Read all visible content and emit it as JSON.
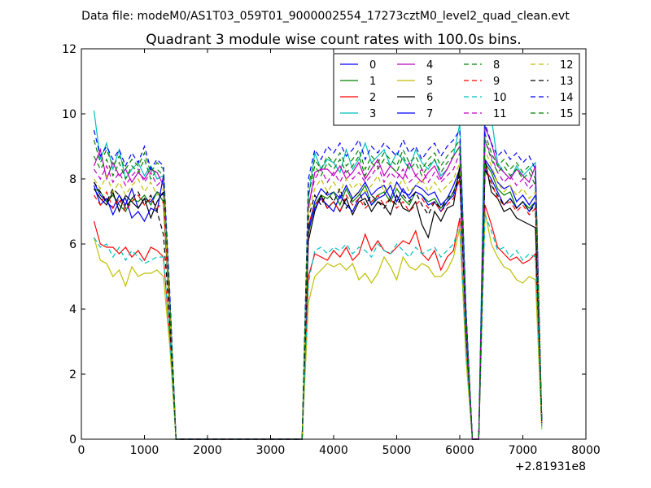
{
  "chart_data": {
    "type": "line",
    "suptitle": "Data file: modeM0/AS1T03_059T01_9000002554_17273cztM0_level2_quad_clean.evt",
    "title": "Quadrant 3 module wise count rates with 100.0s bins.",
    "xlabel": "",
    "ylabel": "",
    "xlim": [
      0,
      8000
    ],
    "ylim": [
      0,
      12
    ],
    "x_offset_label": "+2.81931e8",
    "xticks": [
      0,
      1000,
      2000,
      3000,
      4000,
      5000,
      6000,
      7000,
      8000
    ],
    "yticks": [
      0,
      2,
      4,
      6,
      8,
      10,
      12
    ],
    "legend_position": "top-right",
    "x": [
      200,
      300,
      400,
      500,
      600,
      700,
      800,
      900,
      1000,
      1100,
      1200,
      1300,
      1400,
      1500,
      1600,
      1700,
      1800,
      1900,
      2000,
      2100,
      2200,
      2300,
      2400,
      2500,
      2600,
      2700,
      2800,
      2900,
      3000,
      3100,
      3200,
      3300,
      3400,
      3500,
      3600,
      3700,
      3800,
      3900,
      4000,
      4100,
      4200,
      4300,
      4400,
      4500,
      4600,
      4700,
      4800,
      4900,
      5000,
      5100,
      5200,
      5300,
      5400,
      5500,
      5600,
      5700,
      5800,
      5900,
      6000,
      6100,
      6200,
      6300,
      6400,
      6500,
      6600,
      6700,
      6800,
      6900,
      7000,
      7100,
      7200,
      7300
    ],
    "series": [
      {
        "name": "0",
        "color": "#0000ff",
        "dash": "solid",
        "values": [
          7.9,
          7.5,
          7.3,
          7.1,
          7.5,
          7.2,
          7.7,
          7.1,
          7.4,
          7.3,
          7.6,
          7.5,
          4.0,
          0,
          0,
          0,
          0,
          0,
          0,
          0,
          0,
          0,
          0,
          0,
          0,
          0,
          0,
          0,
          0,
          0,
          0,
          0,
          0,
          0,
          6.5,
          7.3,
          7.7,
          7.5,
          7.6,
          7.4,
          7.8,
          7.4,
          7.6,
          7.9,
          7.5,
          7.7,
          7.8,
          7.4,
          7.9,
          7.6,
          7.5,
          7.8,
          7.7,
          7.5,
          7.6,
          7.2,
          7.4,
          7.8,
          8.3,
          3.5,
          0,
          0,
          8.6,
          8.3,
          7.9,
          7.7,
          7.8,
          7.3,
          7.5,
          7.2,
          7.5,
          0.5
        ]
      },
      {
        "name": "1",
        "color": "#008000",
        "dash": "solid",
        "values": [
          7.7,
          7.6,
          7.3,
          7.5,
          7.2,
          7.0,
          7.4,
          7.3,
          7.5,
          7.2,
          7.6,
          7.3,
          3.9,
          0,
          0,
          0,
          0,
          0,
          0,
          0,
          0,
          0,
          0,
          0,
          0,
          0,
          0,
          0,
          0,
          0,
          0,
          0,
          0,
          0,
          6.3,
          7.2,
          7.5,
          7.4,
          7.6,
          7.2,
          7.7,
          7.3,
          7.5,
          7.8,
          7.2,
          7.5,
          7.6,
          7.3,
          7.7,
          7.4,
          7.2,
          7.6,
          7.5,
          7.3,
          7.4,
          7.1,
          7.3,
          7.6,
          8.2,
          3.4,
          0,
          0,
          8.5,
          8.2,
          7.7,
          7.5,
          7.6,
          7.1,
          7.3,
          7.1,
          7.3,
          0.5
        ]
      },
      {
        "name": "2",
        "color": "#ff0000",
        "dash": "solid",
        "values": [
          6.7,
          6.0,
          5.9,
          5.9,
          5.7,
          5.9,
          5.6,
          5.8,
          5.5,
          5.9,
          5.8,
          5.6,
          3.2,
          0,
          0,
          0,
          0,
          0,
          0,
          0,
          0,
          0,
          0,
          0,
          0,
          0,
          0,
          0,
          0,
          0,
          0,
          0,
          0,
          0,
          5.0,
          5.7,
          5.6,
          5.5,
          5.8,
          5.6,
          5.9,
          5.5,
          5.7,
          6.3,
          5.8,
          6.1,
          5.8,
          5.7,
          5.9,
          6.1,
          6.0,
          6.4,
          5.7,
          5.5,
          5.8,
          5.2,
          5.6,
          5.8,
          6.8,
          2.6,
          0,
          0,
          7.2,
          6.6,
          5.9,
          5.7,
          5.5,
          5.6,
          5.4,
          5.5,
          5.7,
          0.4
        ]
      },
      {
        "name": "3",
        "color": "#00bfbf",
        "dash": "solid",
        "values": [
          10.1,
          8.6,
          9.1,
          8.3,
          8.9,
          8.0,
          8.3,
          8.5,
          8.1,
          8.4,
          8.0,
          8.1,
          4.4,
          0,
          0,
          0,
          0,
          0,
          0,
          0,
          0,
          0,
          0,
          0,
          0,
          0,
          0,
          0,
          0,
          0,
          0,
          0,
          0,
          0,
          7.4,
          8.8,
          8.3,
          8.6,
          8.5,
          8.2,
          8.9,
          8.3,
          8.6,
          9.1,
          8.5,
          8.7,
          8.9,
          8.4,
          8.8,
          8.6,
          8.3,
          8.9,
          8.5,
          8.3,
          8.6,
          8.1,
          8.3,
          8.7,
          9.7,
          3.9,
          0,
          0,
          10.8,
          9.9,
          8.5,
          8.2,
          8.0,
          8.4,
          8.1,
          8.3,
          8.5,
          0.5
        ]
      },
      {
        "name": "4",
        "color": "#bf00bf",
        "dash": "solid",
        "values": [
          8.4,
          8.9,
          8.0,
          8.5,
          8.1,
          8.3,
          7.9,
          8.2,
          8.0,
          8.3,
          8.2,
          7.8,
          4.2,
          0,
          0,
          0,
          0,
          0,
          0,
          0,
          0,
          0,
          0,
          0,
          0,
          0,
          0,
          0,
          0,
          0,
          0,
          0,
          0,
          0,
          7.1,
          8.2,
          8.3,
          8.3,
          8.1,
          8.4,
          8.0,
          8.2,
          8.5,
          8.0,
          8.3,
          8.6,
          8.1,
          8.4,
          8.2,
          8.0,
          8.5,
          8.1,
          7.9,
          8.2,
          8.4,
          8.0,
          8.3,
          8.7,
          9.0,
          3.7,
          0,
          0,
          9.6,
          9.1,
          8.4,
          8.2,
          8.0,
          8.3,
          8.1,
          7.9,
          8.4,
          0.5
        ]
      },
      {
        "name": "5",
        "color": "#bfbf00",
        "dash": "solid",
        "values": [
          6.2,
          5.5,
          5.4,
          5.0,
          5.2,
          4.7,
          5.3,
          5.0,
          5.1,
          5.1,
          5.2,
          5.0,
          2.9,
          0,
          0,
          0,
          0,
          0,
          0,
          0,
          0,
          0,
          0,
          0,
          0,
          0,
          0,
          0,
          0,
          0,
          0,
          0,
          0,
          0,
          4.2,
          5.0,
          5.2,
          5.4,
          5.3,
          5.4,
          5.2,
          5.4,
          4.9,
          5.1,
          4.8,
          5.1,
          5.6,
          5.3,
          4.9,
          5.6,
          5.3,
          5.2,
          5.4,
          5.3,
          5.0,
          5.0,
          5.2,
          5.6,
          6.5,
          2.4,
          0,
          0,
          7.0,
          6.0,
          5.6,
          5.3,
          5.2,
          4.9,
          4.8,
          5.0,
          4.9,
          0.3
        ]
      },
      {
        "name": "6",
        "color": "#000000",
        "dash": "solid",
        "values": [
          7.7,
          7.4,
          7.2,
          7.6,
          7.0,
          7.5,
          7.3,
          7.1,
          7.4,
          6.8,
          7.3,
          7.6,
          3.8,
          0,
          0,
          0,
          0,
          0,
          0,
          0,
          0,
          0,
          0,
          0,
          0,
          0,
          0,
          0,
          0,
          0,
          0,
          0,
          0,
          0,
          6.1,
          7.0,
          7.5,
          7.1,
          7.3,
          7.0,
          7.4,
          6.9,
          7.3,
          7.4,
          7.0,
          7.3,
          7.2,
          6.9,
          7.5,
          7.1,
          7.0,
          7.3,
          6.6,
          6.2,
          7.0,
          6.7,
          7.1,
          7.2,
          8.4,
          3.2,
          0,
          0,
          8.6,
          7.6,
          7.4,
          7.0,
          7.1,
          6.8,
          6.7,
          6.6,
          6.5,
          0.5
        ]
      },
      {
        "name": "7",
        "color": "#0000ff",
        "dash": "solid",
        "values": [
          7.8,
          7.2,
          7.4,
          6.9,
          7.3,
          7.4,
          6.8,
          7.0,
          6.7,
          7.1,
          7.0,
          8.1,
          4.1,
          0,
          0,
          0,
          0,
          0,
          0,
          0,
          0,
          0,
          0,
          0,
          0,
          0,
          0,
          0,
          0,
          0,
          0,
          0,
          0,
          0,
          6.4,
          7.1,
          7.4,
          7.2,
          7.0,
          7.5,
          7.2,
          7.0,
          7.4,
          7.6,
          7.2,
          7.4,
          7.5,
          7.8,
          7.3,
          7.7,
          7.4,
          7.6,
          7.5,
          7.2,
          7.3,
          7.0,
          7.3,
          7.5,
          8.0,
          3.3,
          0,
          0,
          8.3,
          8.0,
          7.6,
          7.2,
          7.4,
          7.1,
          7.3,
          7.0,
          7.3,
          0.5
        ]
      },
      {
        "name": "8",
        "color": "#008000",
        "dash": "dashed",
        "values": [
          9.2,
          8.5,
          8.9,
          8.4,
          8.7,
          8.3,
          8.6,
          8.4,
          8.8,
          8.2,
          8.5,
          8.3,
          4.5,
          0,
          0,
          0,
          0,
          0,
          0,
          0,
          0,
          0,
          0,
          0,
          0,
          0,
          0,
          0,
          0,
          0,
          0,
          0,
          0,
          0,
          7.8,
          8.6,
          8.3,
          8.7,
          8.5,
          8.8,
          8.4,
          8.6,
          8.9,
          8.3,
          8.7,
          8.5,
          8.8,
          8.6,
          8.4,
          8.9,
          8.5,
          8.7,
          8.3,
          8.6,
          8.8,
          8.4,
          8.7,
          8.9,
          9.2,
          3.8,
          0,
          0,
          9.4,
          8.8,
          8.4,
          8.6,
          8.3,
          8.5,
          8.2,
          8.4,
          8.0,
          0.5
        ]
      },
      {
        "name": "9",
        "color": "#ff0000",
        "dash": "dashed",
        "values": [
          7.5,
          7.2,
          7.6,
          7.1,
          7.4,
          7.0,
          7.3,
          7.5,
          7.2,
          7.4,
          7.1,
          7.3,
          3.9,
          0,
          0,
          0,
          0,
          0,
          0,
          0,
          0,
          0,
          0,
          0,
          0,
          0,
          0,
          0,
          0,
          0,
          0,
          0,
          0,
          0,
          6.6,
          7.2,
          7.4,
          7.1,
          7.3,
          7.0,
          7.5,
          7.2,
          7.4,
          7.1,
          7.3,
          7.5,
          7.2,
          7.4,
          7.1,
          7.3,
          7.0,
          7.2,
          7.4,
          7.1,
          7.3,
          7.0,
          7.2,
          7.4,
          8.0,
          3.3,
          0,
          0,
          8.4,
          7.9,
          7.4,
          7.2,
          7.3,
          7.0,
          7.2,
          6.9,
          7.1,
          0.5
        ]
      },
      {
        "name": "10",
        "color": "#00bfbf",
        "dash": "dashed",
        "values": [
          6.2,
          5.9,
          6.0,
          5.6,
          5.9,
          5.5,
          5.8,
          5.6,
          5.4,
          5.5,
          5.6,
          5.6,
          3.2,
          0,
          0,
          0,
          0,
          0,
          0,
          0,
          0,
          0,
          0,
          0,
          0,
          0,
          0,
          0,
          0,
          0,
          0,
          0,
          0,
          0,
          4.8,
          5.8,
          5.9,
          5.7,
          5.9,
          5.8,
          6.0,
          5.7,
          5.9,
          5.8,
          5.6,
          6.0,
          5.8,
          5.7,
          6.0,
          5.8,
          5.6,
          5.9,
          5.7,
          5.8,
          5.9,
          5.6,
          5.8,
          6.0,
          6.6,
          2.7,
          0,
          0,
          6.9,
          6.4,
          5.8,
          5.9,
          5.6,
          5.8,
          5.5,
          5.7,
          5.6,
          0.4
        ]
      },
      {
        "name": "11",
        "color": "#bf00bf",
        "dash": "dashed",
        "values": [
          8.3,
          8.0,
          8.4,
          7.9,
          8.2,
          7.8,
          8.1,
          8.3,
          7.9,
          8.2,
          7.8,
          8.0,
          4.2,
          0,
          0,
          0,
          0,
          0,
          0,
          0,
          0,
          0,
          0,
          0,
          0,
          0,
          0,
          0,
          0,
          0,
          0,
          0,
          0,
          0,
          7.2,
          8.0,
          8.3,
          7.9,
          8.2,
          7.9,
          8.3,
          8.0,
          8.2,
          7.9,
          8.1,
          8.4,
          7.9,
          8.2,
          8.0,
          8.3,
          7.9,
          8.1,
          8.3,
          7.9,
          8.2,
          7.9,
          8.1,
          8.3,
          8.8,
          3.6,
          0,
          0,
          9.2,
          8.7,
          8.2,
          7.9,
          8.1,
          7.8,
          8.0,
          7.7,
          7.9,
          0.5
        ]
      },
      {
        "name": "12",
        "color": "#bfbf00",
        "dash": "dashed",
        "values": [
          8.0,
          7.7,
          8.1,
          7.6,
          7.9,
          7.5,
          7.8,
          8.0,
          7.6,
          7.9,
          7.5,
          7.7,
          4.0,
          0,
          0,
          0,
          0,
          0,
          0,
          0,
          0,
          0,
          0,
          0,
          0,
          0,
          0,
          0,
          0,
          0,
          0,
          0,
          0,
          0,
          7.0,
          7.7,
          8.0,
          7.6,
          7.9,
          7.6,
          8.0,
          7.7,
          7.9,
          7.6,
          7.8,
          8.1,
          7.6,
          7.9,
          7.7,
          8.0,
          7.6,
          7.8,
          8.0,
          7.6,
          7.9,
          7.6,
          7.8,
          8.0,
          8.5,
          3.4,
          0,
          0,
          8.9,
          8.4,
          7.9,
          7.6,
          7.8,
          7.5,
          7.7,
          7.4,
          7.6,
          0.5
        ]
      },
      {
        "name": "13",
        "color": "#000000",
        "dash": "dashed",
        "values": [
          7.9,
          7.6,
          7.3,
          7.7,
          7.5,
          7.1,
          7.4,
          7.6,
          7.2,
          7.5,
          7.0,
          6.3,
          3.7,
          0,
          0,
          0,
          0,
          0,
          0,
          0,
          0,
          0,
          0,
          0,
          0,
          0,
          0,
          0,
          0,
          0,
          0,
          0,
          0,
          0,
          6.8,
          7.5,
          7.2,
          7.6,
          7.3,
          7.7,
          7.1,
          7.4,
          7.6,
          7.2,
          7.5,
          7.3,
          7.1,
          7.4,
          7.2,
          7.5,
          7.3,
          7.6,
          7.2,
          6.9,
          7.3,
          7.1,
          7.4,
          7.6,
          8.1,
          3.3,
          0,
          0,
          8.3,
          7.8,
          7.5,
          7.2,
          7.4,
          7.1,
          7.3,
          7.0,
          7.2,
          0.5
        ]
      },
      {
        "name": "14",
        "color": "#0000ff",
        "dash": "dashed",
        "values": [
          9.5,
          8.7,
          9.0,
          8.6,
          8.9,
          8.4,
          8.8,
          8.5,
          9.0,
          8.3,
          8.6,
          8.4,
          4.6,
          0,
          0,
          0,
          0,
          0,
          0,
          0,
          0,
          0,
          0,
          0,
          0,
          0,
          0,
          0,
          0,
          0,
          0,
          0,
          0,
          0,
          8.0,
          8.9,
          8.6,
          9.0,
          8.8,
          9.1,
          8.7,
          8.9,
          9.2,
          8.6,
          9.0,
          8.8,
          9.1,
          8.9,
          8.7,
          9.2,
          8.8,
          9.0,
          8.6,
          8.9,
          9.1,
          8.7,
          9.0,
          9.2,
          9.5,
          3.9,
          0,
          0,
          9.7,
          9.1,
          8.7,
          8.9,
          8.6,
          8.8,
          8.5,
          8.7,
          8.3,
          0.5
        ]
      },
      {
        "name": "15",
        "color": "#008000",
        "dash": "dashed",
        "values": [
          8.7,
          8.3,
          8.6,
          8.1,
          8.5,
          8.0,
          8.4,
          8.2,
          8.6,
          8.0,
          8.3,
          8.1,
          4.3,
          0,
          0,
          0,
          0,
          0,
          0,
          0,
          0,
          0,
          0,
          0,
          0,
          0,
          0,
          0,
          0,
          0,
          0,
          0,
          0,
          0,
          7.5,
          8.4,
          8.1,
          8.5,
          8.3,
          8.6,
          8.2,
          8.4,
          8.7,
          8.1,
          8.5,
          8.3,
          8.6,
          8.4,
          8.2,
          8.7,
          8.3,
          8.5,
          8.1,
          8.4,
          8.6,
          8.2,
          8.5,
          8.7,
          9.0,
          3.6,
          0,
          0,
          9.2,
          8.6,
          8.2,
          8.4,
          8.1,
          8.3,
          8.0,
          8.2,
          7.8,
          0.5
        ]
      }
    ]
  }
}
